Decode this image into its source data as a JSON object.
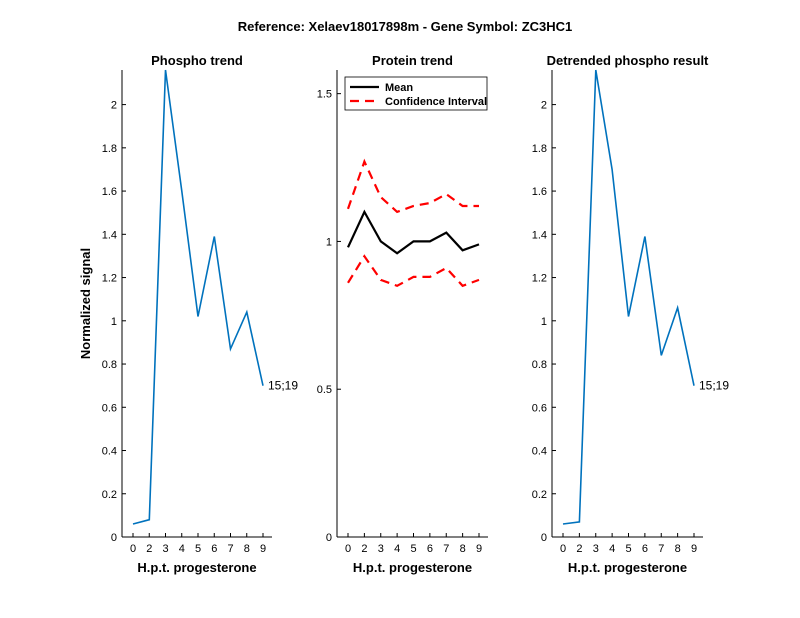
{
  "figure": {
    "title": "Reference:  Xelaev18017898m - Gene Symbol:  ZC3HC1"
  },
  "colors": {
    "phospho_line": "#0072BD",
    "mean_line": "#000000",
    "ci_line": "#FF0000"
  },
  "chart_data": [
    {
      "type": "line",
      "title": "Phospho trend",
      "xlabel": "H.p.t. progesterone",
      "ylabel": "Normalized signal",
      "x_tick_labels": [
        "0",
        "2",
        "3",
        "4",
        "5",
        "6",
        "7",
        "8",
        "9"
      ],
      "y_tick_labels": [
        "0",
        "0.2",
        "0.4",
        "0.6",
        "0.8",
        "1",
        "1.2",
        "1.4",
        "1.6",
        "1.8",
        "2"
      ],
      "y_ticks": [
        0,
        0.2,
        0.4,
        0.6,
        0.8,
        1,
        1.2,
        1.4,
        1.6,
        1.8,
        2
      ],
      "ylim": [
        0,
        2.16
      ],
      "series": [
        {
          "values": [
            0.06,
            0.08,
            2.16,
            1.6,
            1.02,
            1.39,
            0.87,
            1.04,
            0.7
          ]
        }
      ],
      "annotation": "15;19",
      "grid": false
    },
    {
      "type": "line",
      "title": "Protein trend",
      "xlabel": "H.p.t. progesterone",
      "ylabel": "",
      "x_tick_labels": [
        "0",
        "2",
        "3",
        "4",
        "5",
        "6",
        "7",
        "8",
        "9"
      ],
      "y_tick_labels": [
        "0",
        "0.5",
        "1",
        "1.5"
      ],
      "y_ticks": [
        0,
        0.5,
        1,
        1.5
      ],
      "ylim": [
        0,
        1.58
      ],
      "legend": {
        "placement": "top-left",
        "entries": [
          "Mean",
          "Confidence Interval"
        ]
      },
      "series": [
        {
          "name": "Mean",
          "values": [
            0.98,
            1.1,
            1.0,
            0.96,
            1.0,
            1.0,
            1.03,
            0.97,
            0.99
          ]
        },
        {
          "name": "Confidence Interval",
          "values": [
            1.11,
            1.27,
            1.15,
            1.1,
            1.12,
            1.13,
            1.16,
            1.12,
            1.12
          ]
        },
        {
          "name": "Confidence Interval",
          "values": [
            0.86,
            0.95,
            0.87,
            0.85,
            0.88,
            0.88,
            0.91,
            0.85,
            0.87
          ]
        }
      ],
      "grid": false
    },
    {
      "type": "line",
      "title": "Detrended phospho result",
      "xlabel": "H.p.t. progesterone",
      "ylabel": "",
      "x_tick_labels": [
        "0",
        "2",
        "3",
        "4",
        "5",
        "6",
        "7",
        "8",
        "9"
      ],
      "y_tick_labels": [
        "0",
        "0.2",
        "0.4",
        "0.6",
        "0.8",
        "1",
        "1.2",
        "1.4",
        "1.6",
        "1.8",
        "2"
      ],
      "y_ticks": [
        0,
        0.2,
        0.4,
        0.6,
        0.8,
        1,
        1.2,
        1.4,
        1.6,
        1.8,
        2
      ],
      "ylim": [
        0,
        2.16
      ],
      "series": [
        {
          "values": [
            0.06,
            0.07,
            2.16,
            1.7,
            1.02,
            1.39,
            0.84,
            1.06,
            0.7
          ]
        }
      ],
      "annotation": "15;19",
      "grid": false
    }
  ]
}
